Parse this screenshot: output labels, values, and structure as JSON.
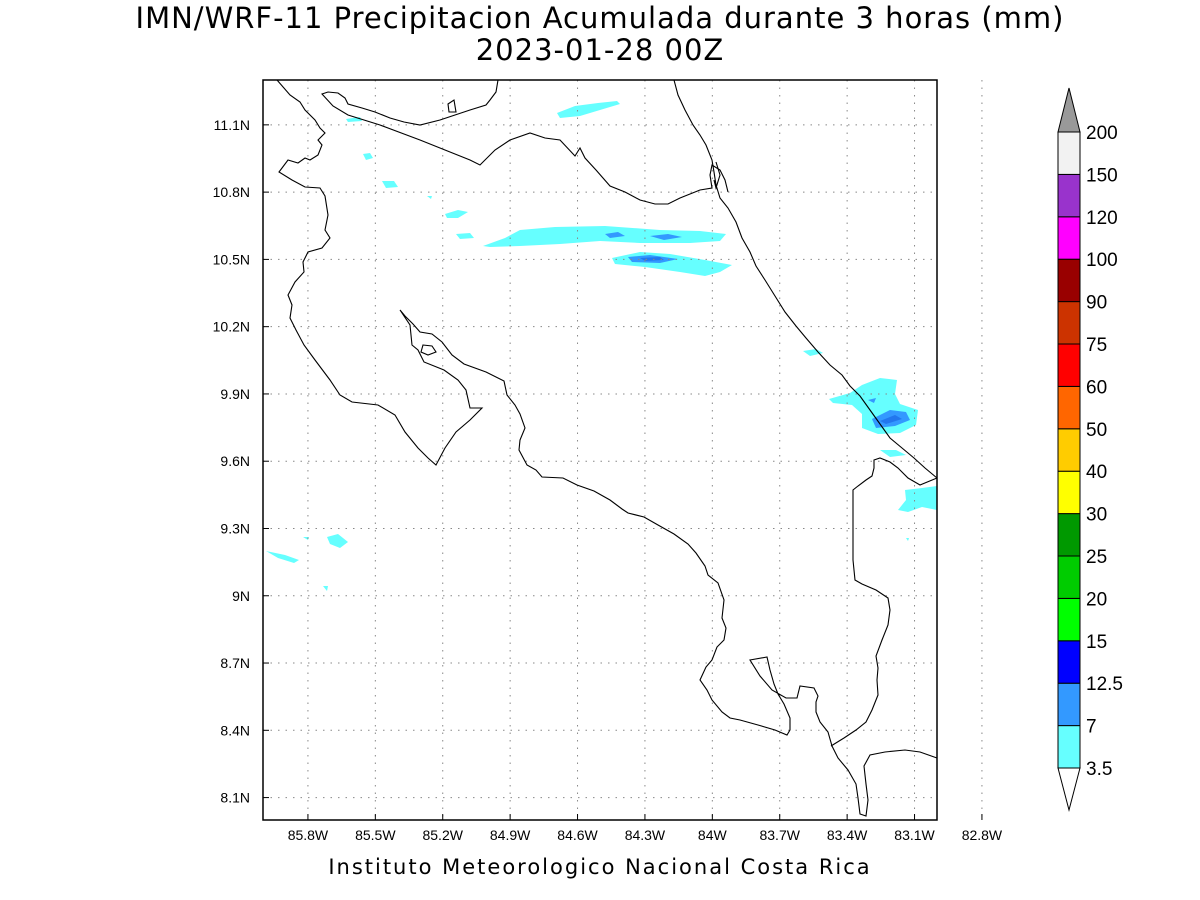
{
  "title": {
    "line1": "IMN/WRF-11 Precipitacion Acumulada durante 3 horas (mm)",
    "line2": "2023-01-28 00Z"
  },
  "footer": "Instituto Meteorologico Nacional Costa Rica",
  "map": {
    "lon_range_west": [
      86.0,
      83.0
    ],
    "lat_range_north": [
      8.0,
      11.3
    ],
    "lon_ticks": [
      "85.8W",
      "85.5W",
      "85.2W",
      "84.9W",
      "84.6W",
      "84.3W",
      "84W",
      "83.7W",
      "83.4W",
      "83.1W",
      "82.8W"
    ],
    "lat_ticks": [
      "11.1N",
      "10.8N",
      "10.5N",
      "10.2N",
      "9.9N",
      "9.6N",
      "9.3N",
      "9N",
      "8.7N",
      "8.4N",
      "8.1N"
    ],
    "gridlines": "dotted"
  },
  "colorbar": {
    "labels": [
      "3.5",
      "7",
      "12.5",
      "15",
      "20",
      "25",
      "30",
      "40",
      "50",
      "60",
      "75",
      "90",
      "100",
      "120",
      "150",
      "200"
    ],
    "colors": [
      "#66ffff",
      "#3399ff",
      "#0000ff",
      "#00ff00",
      "#00cc00",
      "#009900",
      "#ffff00",
      "#ffcc00",
      "#ff6600",
      "#ff0000",
      "#cc3300",
      "#990000",
      "#ff00ff",
      "#9933cc",
      "#f2f2f2",
      "#999999"
    ]
  },
  "precip_colors": {
    "light": "#66ffff",
    "moderate": "#3399ff"
  }
}
